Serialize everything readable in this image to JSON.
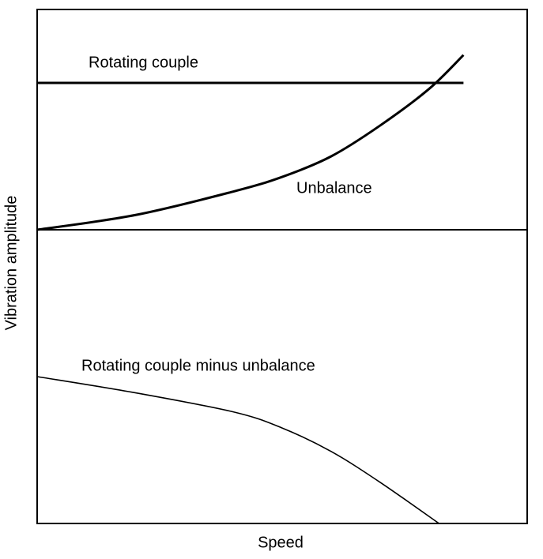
{
  "chart_data": {
    "type": "line",
    "x_label": "Speed",
    "y_label": "Vibration amplitude",
    "xlim": [
      0,
      1
    ],
    "ylim": [
      -2,
      1.5
    ],
    "baseline": 0,
    "series": [
      {
        "name": "Rotating couple",
        "color": "#000000",
        "x": [
          0,
          0.87
        ],
        "values": [
          1,
          1
        ]
      },
      {
        "name": "Unbalance",
        "color": "#000000",
        "x": [
          0,
          0.2,
          0.4,
          0.5,
          0.6,
          0.7,
          0.8,
          0.87
        ],
        "values": [
          0,
          0.1,
          0.26,
          0.36,
          0.5,
          0.71,
          0.96,
          1.19
        ]
      },
      {
        "name": "Rotating couple minus unbalance",
        "color": "#000000",
        "x": [
          0,
          0.2,
          0.4,
          0.5,
          0.6,
          0.7,
          0.82
        ],
        "values": [
          -1,
          -1.11,
          -1.24,
          -1.35,
          -1.51,
          -1.72,
          -2
        ]
      }
    ]
  }
}
